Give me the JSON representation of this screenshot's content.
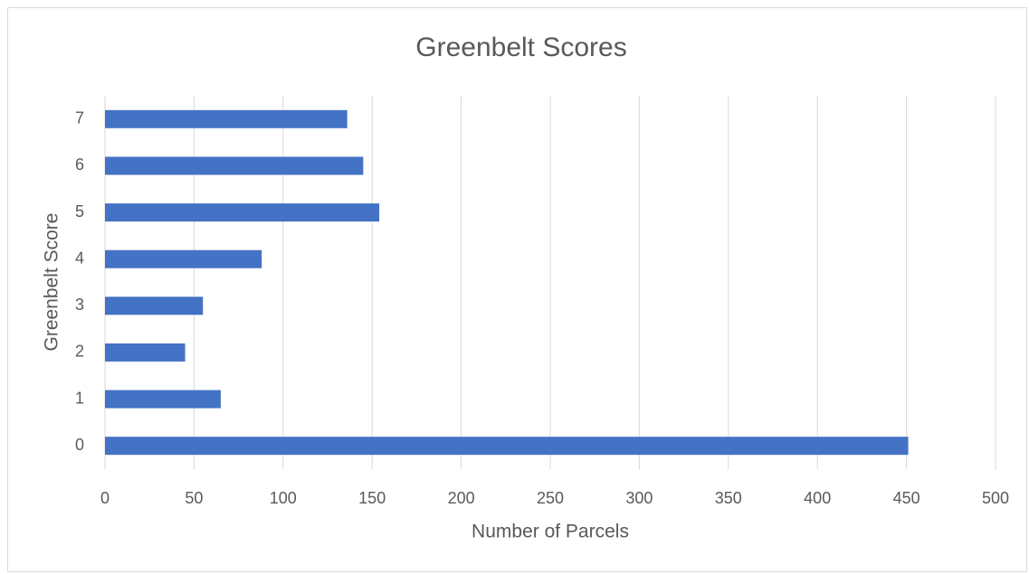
{
  "chart_data": {
    "type": "bar",
    "orientation": "horizontal",
    "title": "Greenbelt Scores",
    "x_label": "Number of Parcels",
    "y_label": "Greenbelt Score",
    "categories": [
      "0",
      "1",
      "2",
      "3",
      "4",
      "5",
      "6",
      "7"
    ],
    "values": [
      451,
      65,
      45,
      55,
      88,
      154,
      145,
      136
    ],
    "color": "#4472c4",
    "xlim": [
      0,
      500
    ],
    "xticks": [
      0,
      50,
      100,
      150,
      200,
      250,
      300,
      350,
      400,
      450,
      500
    ],
    "grid": true
  }
}
